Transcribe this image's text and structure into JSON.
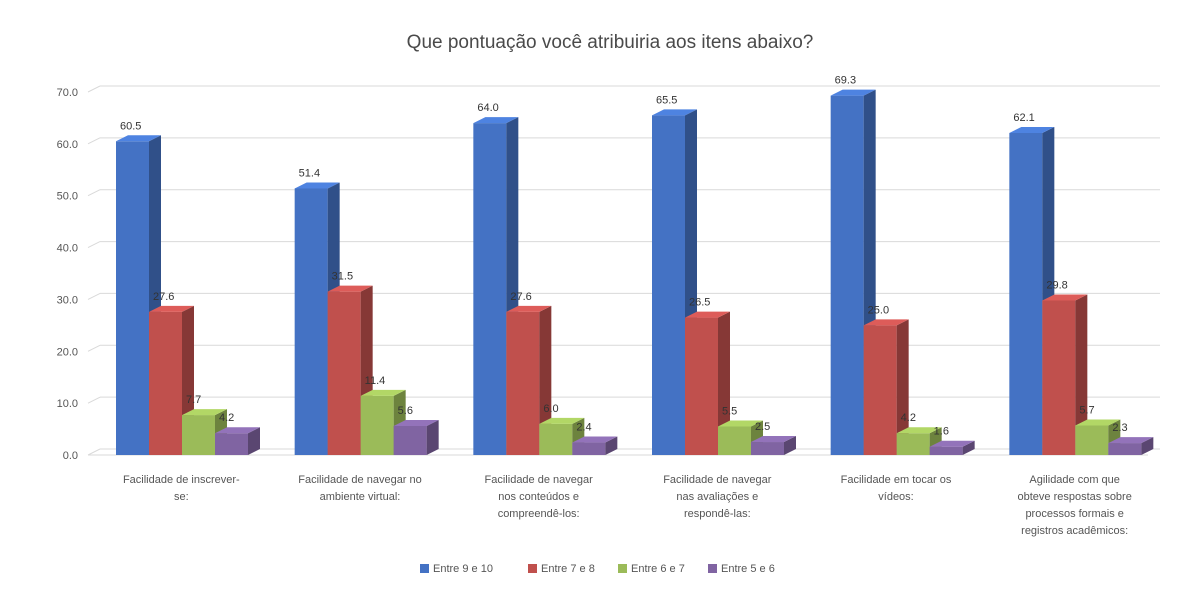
{
  "chart_data": {
    "type": "bar",
    "title": "Que pontuação você atribuiria aos itens abaixo?",
    "xlabel": "",
    "ylabel": "",
    "ylim": [
      0,
      70
    ],
    "yticks": [
      "0.0",
      "10.0",
      "20.0",
      "30.0",
      "40.0",
      "50.0",
      "60.0",
      "70.0"
    ],
    "categories": [
      "Facilidade de inscrever-se:",
      "Facilidade de navegar no ambiente virtual:",
      "Facilidade de navegar nos conteúdos e compreendê-los:",
      "Facilidade de navegar nas avaliações e respondê-las:",
      "Facilidade em tocar os vídeos:",
      "Agilidade com que obteve respostas sobre processos formais e registros acadêmicos:"
    ],
    "category_lines": [
      [
        "Facilidade de inscrever-",
        "se:"
      ],
      [
        "Facilidade de navegar no",
        "ambiente virtual:"
      ],
      [
        "Facilidade de navegar",
        "nos conteúdos e",
        "compreendê-los:"
      ],
      [
        "Facilidade de navegar",
        "nas avaliações e",
        "respondê-las:"
      ],
      [
        "Facilidade em tocar os",
        "vídeos:"
      ],
      [
        "Agilidade com que",
        "obteve respostas sobre",
        "processos formais e",
        "registros acadêmicos:"
      ]
    ],
    "series": [
      {
        "name": "Entre 9 e 10",
        "color": "#4472c4",
        "values": [
          60.5,
          51.4,
          64.0,
          65.5,
          69.3,
          62.1
        ],
        "labels": [
          "60.5",
          "51.4",
          "64.0",
          "65.5",
          "69.3",
          "62.1"
        ]
      },
      {
        "name": "Entre 7 e 8",
        "color": "#c0504d",
        "values": [
          27.6,
          31.5,
          27.6,
          26.5,
          25.0,
          29.8
        ],
        "labels": [
          "27.6",
          "31.5",
          "27.6",
          "26.5",
          "25.0",
          "29.8"
        ]
      },
      {
        "name": "Entre 6 e 7",
        "color": "#9bbb59",
        "values": [
          7.7,
          11.4,
          6.0,
          5.5,
          4.2,
          5.7
        ],
        "labels": [
          "7.7",
          "11.4",
          "6.0",
          "5.5",
          "4.2",
          "5.7"
        ]
      },
      {
        "name": "Entre 5 e 6",
        "color": "#8064a2",
        "values": [
          4.2,
          5.6,
          2.4,
          2.5,
          1.6,
          2.3
        ],
        "labels": [
          "4.2",
          "5.6",
          "2.4",
          "2.5",
          "1.6",
          "2.3"
        ]
      }
    ],
    "grid": true,
    "legend_position": "bottom"
  }
}
